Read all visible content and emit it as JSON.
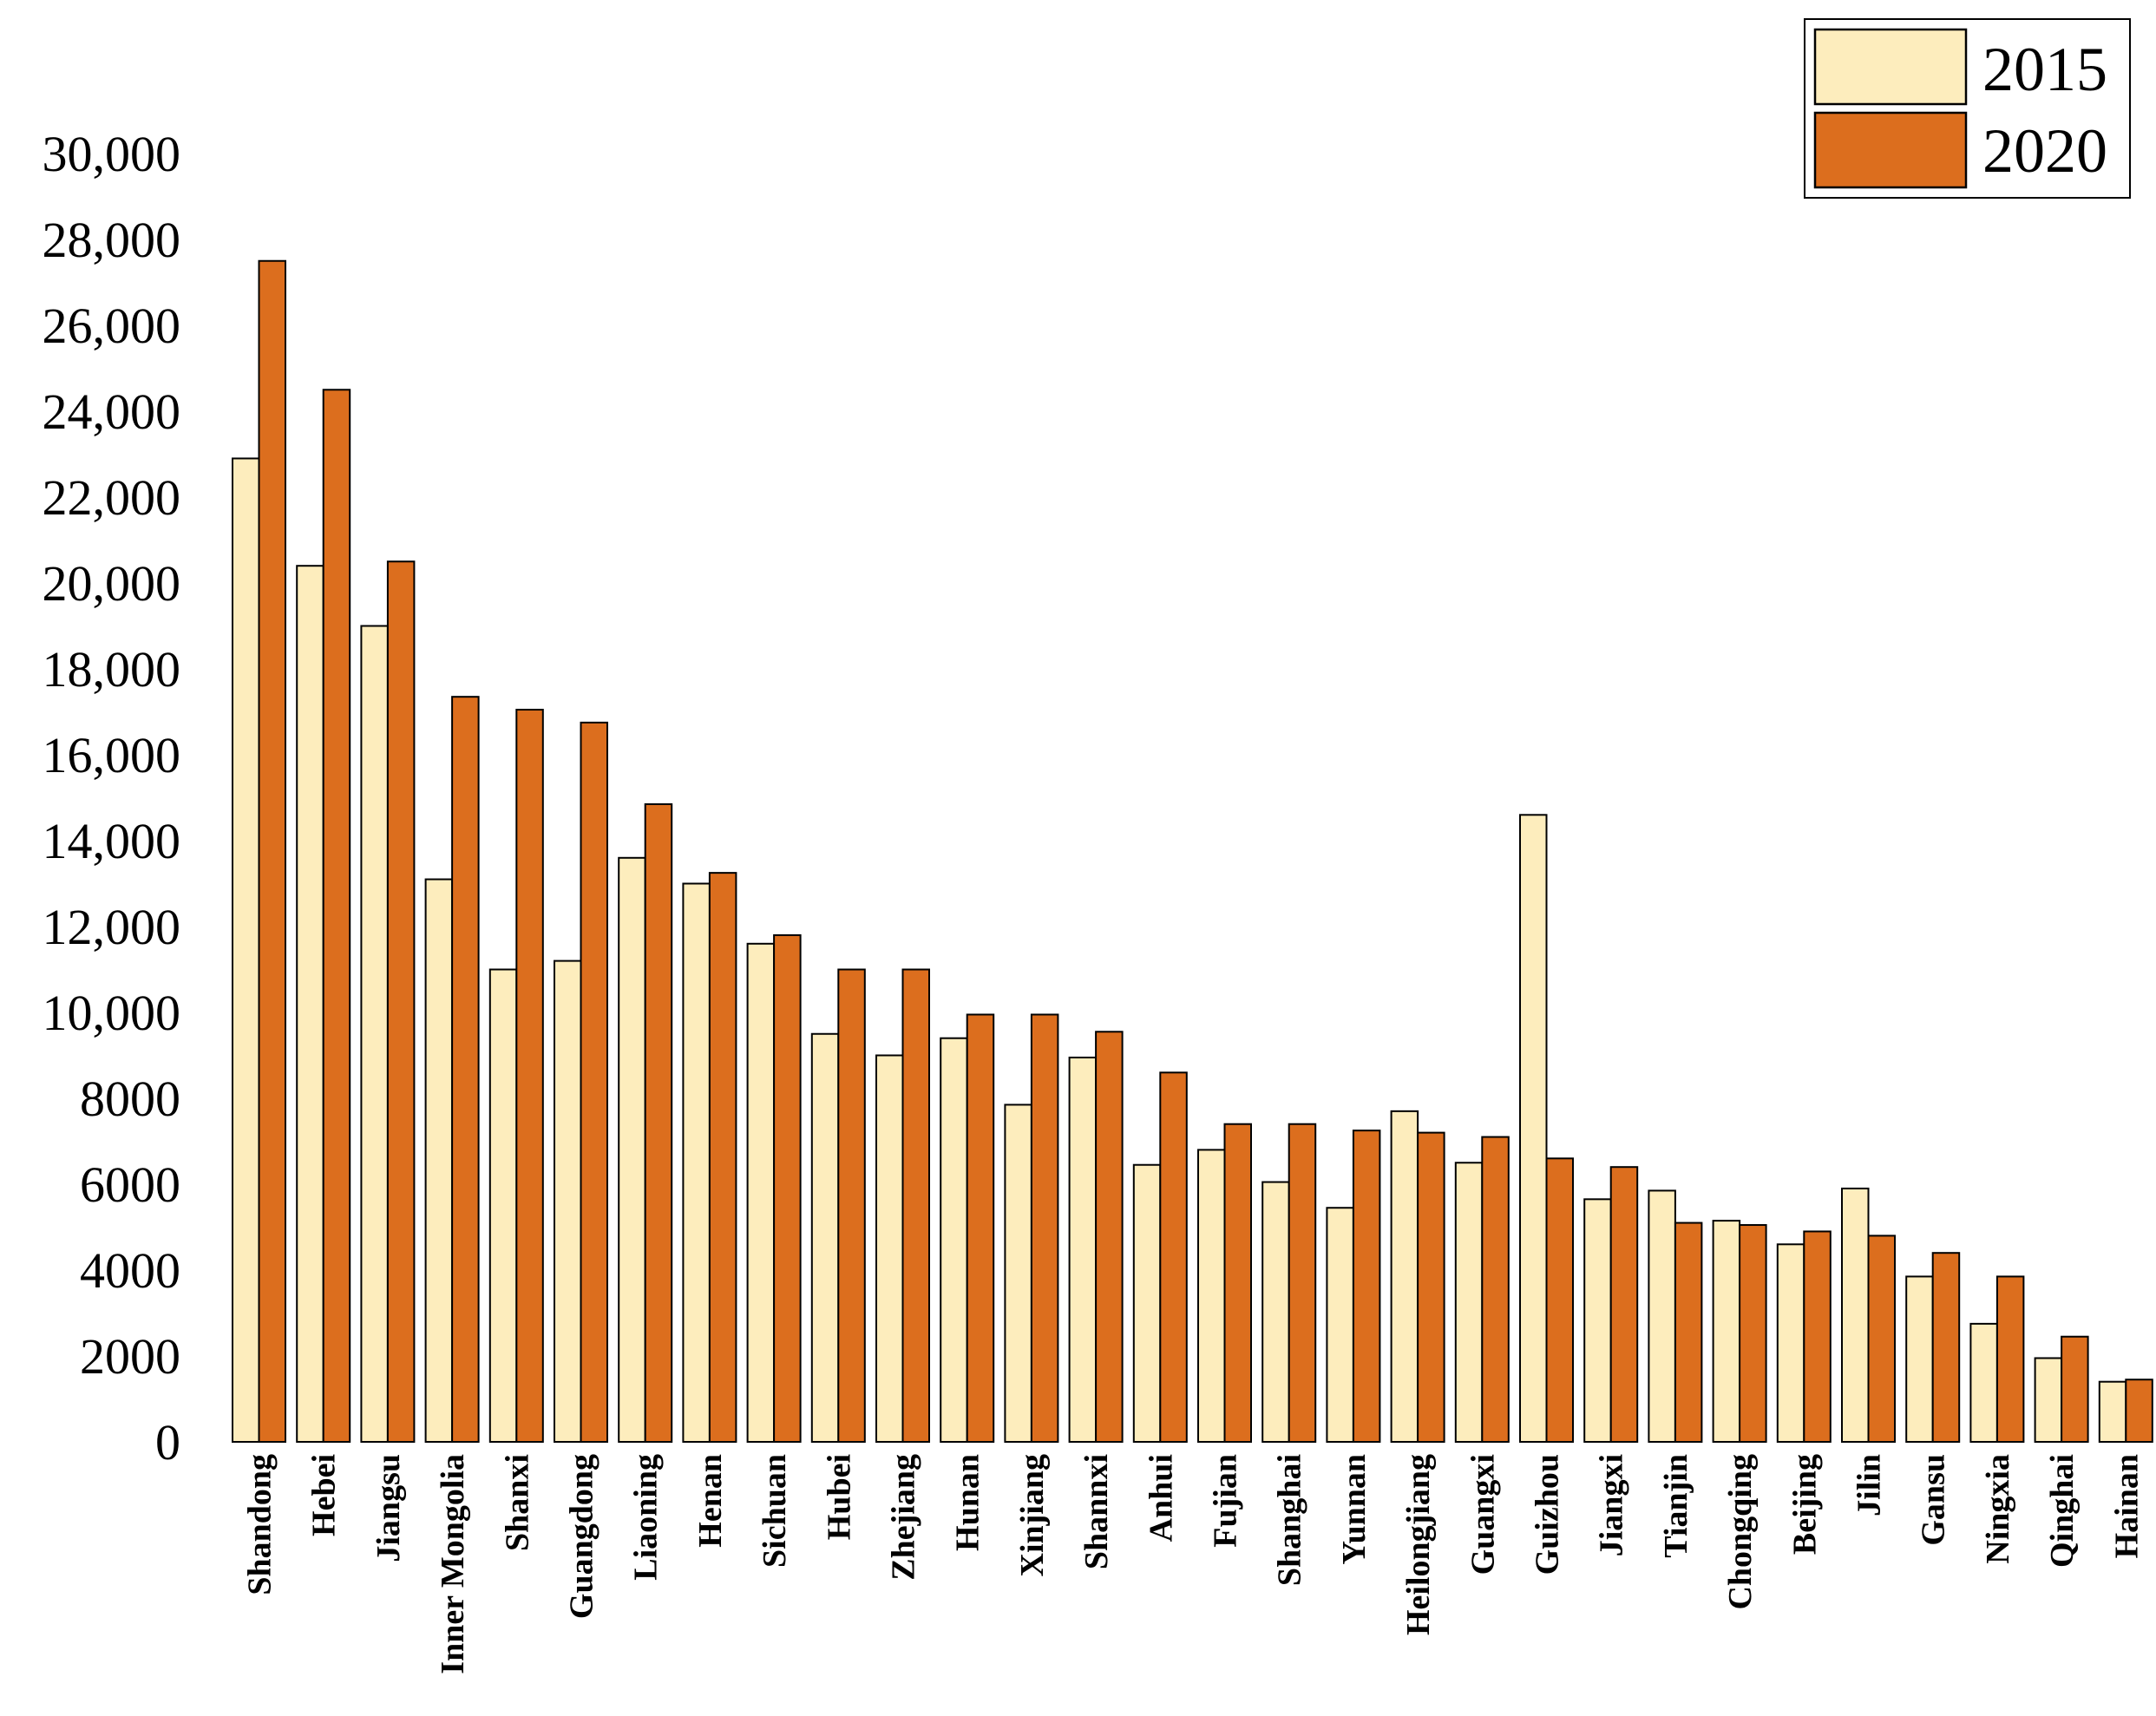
{
  "chart_data": {
    "type": "bar",
    "title": "",
    "xlabel": "",
    "ylabel": "",
    "ylim": [
      0,
      30000
    ],
    "yticks": [
      {
        "value": 0,
        "label": "0"
      },
      {
        "value": 2000,
        "label": "2000"
      },
      {
        "value": 4000,
        "label": "4000"
      },
      {
        "value": 6000,
        "label": "6000"
      },
      {
        "value": 8000,
        "label": "8000"
      },
      {
        "value": 10000,
        "label": "10,000"
      },
      {
        "value": 12000,
        "label": "12,000"
      },
      {
        "value": 14000,
        "label": "14,000"
      },
      {
        "value": 16000,
        "label": "16,000"
      },
      {
        "value": 18000,
        "label": "18,000"
      },
      {
        "value": 20000,
        "label": "20,000"
      },
      {
        "value": 22000,
        "label": "22,000"
      },
      {
        "value": 24000,
        "label": "24,000"
      },
      {
        "value": 26000,
        "label": "26,000"
      },
      {
        "value": 28000,
        "label": "28,000"
      },
      {
        "value": 30000,
        "label": "30,000"
      }
    ],
    "categories": [
      "Shandong",
      "Hebei",
      "Jiangsu",
      "Inner Mongolia",
      "Shanxi",
      "Guangdong",
      "Liaoning",
      "Henan",
      "Sichuan",
      "Hubei",
      "Zhejiang",
      "Hunan",
      "Xinjiang",
      "Shannxi",
      "Anhui",
      "Fujian",
      "Shanghai",
      "Yunnan",
      "Heilongjiang",
      "Guangxi",
      "Guizhou",
      "Jiangxi",
      "Tianjin",
      "Chongqing",
      "Beijing",
      "Jilin",
      "Gansu",
      "Ningxia",
      "Qinghai",
      "Hainan"
    ],
    "series": [
      {
        "name": "2015",
        "color": "#fdedbd",
        "values": [
          22900,
          20400,
          19000,
          13100,
          11000,
          11200,
          13600,
          13000,
          11600,
          9500,
          9000,
          9400,
          7850,
          8950,
          6450,
          6800,
          6050,
          5450,
          7700,
          6500,
          14600,
          5650,
          5850,
          5150,
          4600,
          5900,
          3850,
          2750,
          1950,
          1400
        ]
      },
      {
        "name": "2020",
        "color": "#dc6e1e",
        "values": [
          27500,
          24500,
          20500,
          17350,
          17050,
          16750,
          14850,
          13250,
          11800,
          11000,
          11000,
          9950,
          9950,
          9550,
          8600,
          7400,
          7400,
          7250,
          7200,
          7100,
          6600,
          6400,
          5100,
          5050,
          4900,
          4800,
          4400,
          3850,
          2450,
          1450
        ]
      }
    ],
    "legend": {
      "position": "top-right",
      "entries": [
        "2015",
        "2020"
      ]
    }
  }
}
